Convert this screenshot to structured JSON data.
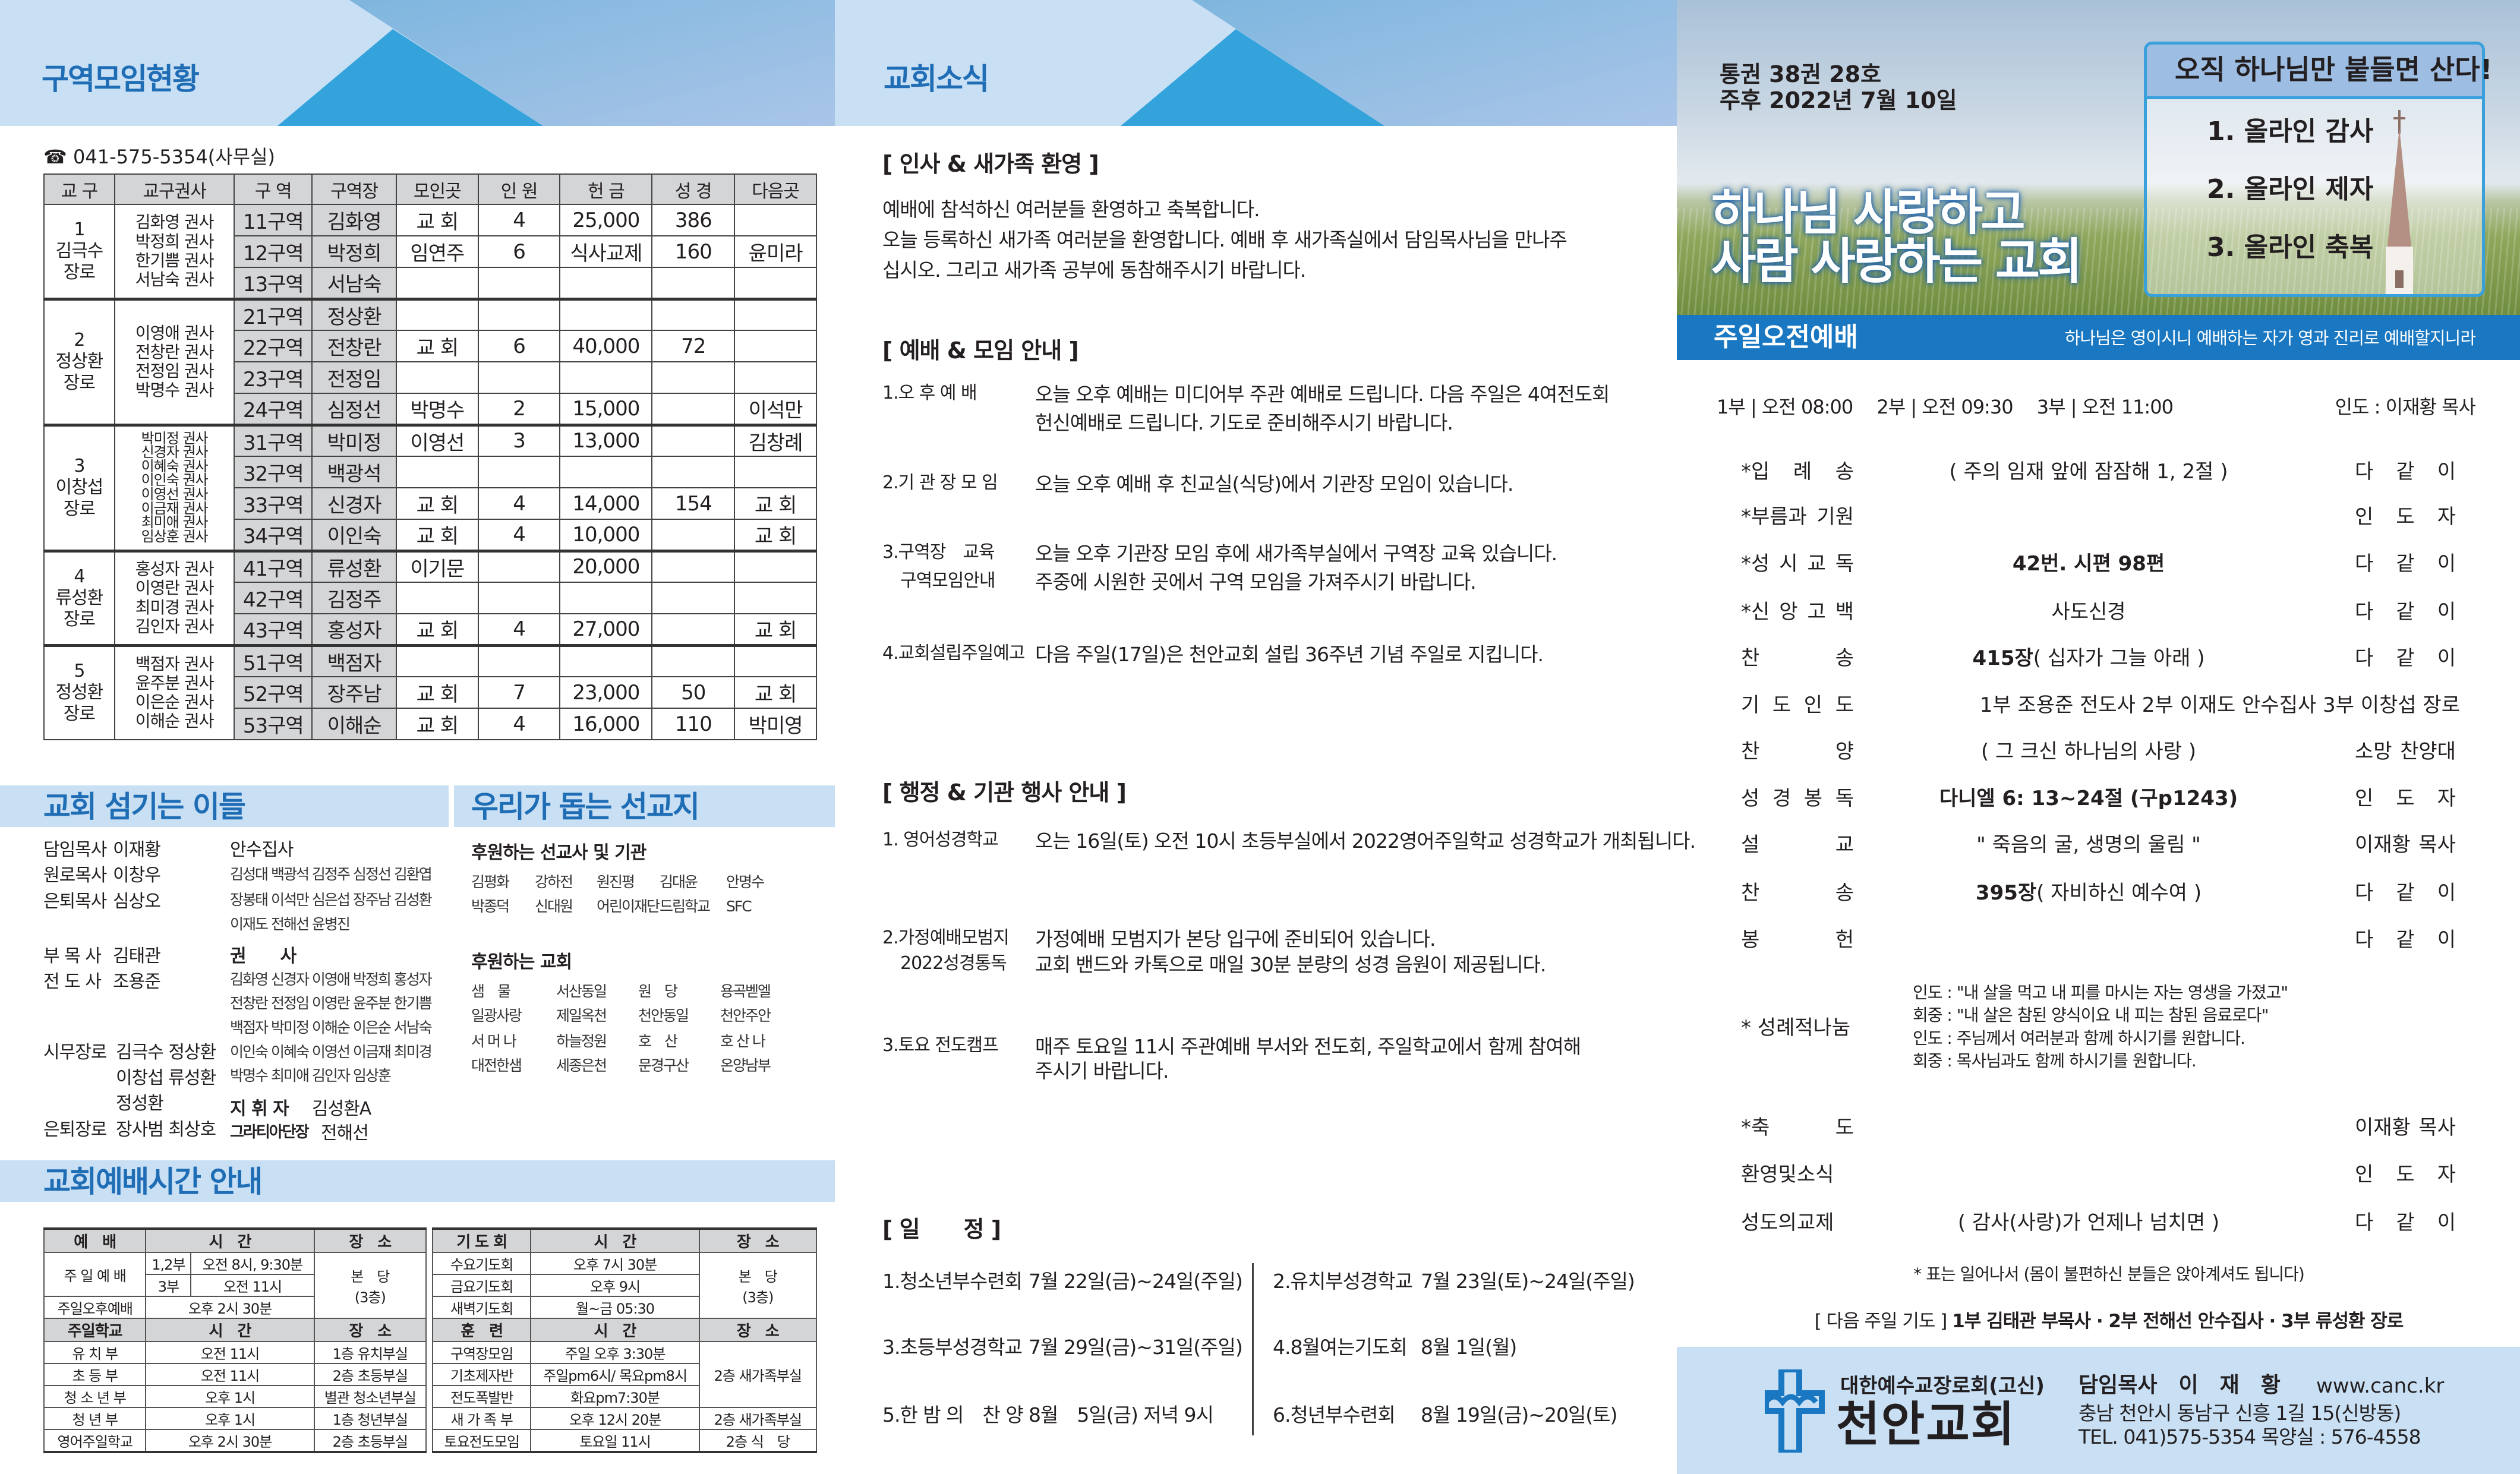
{
  "left": {
    "title": "구역모임현황",
    "phone_icon": "telephone-icon",
    "phone": "☎ 041-575-5354(사무실)",
    "headers": [
      "교 구",
      "교구권사",
      "구 역",
      "구역장",
      "모인곳",
      "인 원",
      "헌 금",
      "성 경",
      "다음곳"
    ],
    "groups": [
      {
        "num": "1",
        "leader": "김극수",
        "title": "장로",
        "kwonsa": [
          "김화영 권사",
          "박정희 권사",
          "한기쁨 권사",
          "서남숙 권사"
        ],
        "districts": [
          [
            "11구역",
            "김화영",
            "교 회",
            "4",
            "25,000",
            "386",
            ""
          ],
          [
            "12구역",
            "박정희",
            "임연주",
            "6",
            "식사교제",
            "160",
            "윤미라"
          ],
          [
            "13구역",
            "서남숙",
            "",
            "",
            "",
            "",
            ""
          ]
        ]
      },
      {
        "num": "2",
        "leader": "정상환",
        "title": "장로",
        "kwonsa": [
          "이영애 권사",
          "전창란 권사",
          "전정임 권사",
          "박명수 권사"
        ],
        "districts": [
          [
            "21구역",
            "정상환",
            "",
            "",
            "",
            "",
            ""
          ],
          [
            "22구역",
            "전창란",
            "교 회",
            "6",
            "40,000",
            "72",
            ""
          ],
          [
            "23구역",
            "전정임",
            "",
            "",
            "",
            "",
            ""
          ],
          [
            "24구역",
            "심정선",
            "박명수",
            "2",
            "15,000",
            "",
            "이석만"
          ]
        ]
      },
      {
        "num": "3",
        "leader": "이창섭",
        "title": "장로",
        "kwonsa": [
          "박미정 권사",
          "신경자 권사",
          "이혜숙 권사",
          "이인숙 권사",
          "이영선 권사",
          "이금재 권사",
          "최미애 권사",
          "임상훈 권사"
        ],
        "districts": [
          [
            "31구역",
            "박미정",
            "이영선",
            "3",
            "13,000",
            "",
            "김창례"
          ],
          [
            "32구역",
            "백광석",
            "",
            "",
            "",
            "",
            ""
          ],
          [
            "33구역",
            "신경자",
            "교 회",
            "4",
            "14,000",
            "154",
            "교 회"
          ],
          [
            "34구역",
            "이인숙",
            "교 회",
            "4",
            "10,000",
            "",
            "교 회"
          ]
        ]
      },
      {
        "num": "4",
        "leader": "류성환",
        "title": "장로",
        "kwonsa": [
          "홍성자 권사",
          "이영란 권사",
          "최미경 권사",
          "김인자 권사"
        ],
        "districts": [
          [
            "41구역",
            "류성환",
            "이기문",
            "",
            "20,000",
            "",
            ""
          ],
          [
            "42구역",
            "김정주",
            "",
            "",
            "",
            "",
            ""
          ],
          [
            "43구역",
            "홍성자",
            "교 회",
            "4",
            "27,000",
            "",
            "교 회"
          ]
        ]
      },
      {
        "num": "5",
        "leader": "정성환",
        "title": "장로",
        "kwonsa": [
          "백점자 권사",
          "윤주분 권사",
          "이은순 권사",
          "이해순 권사"
        ],
        "districts": [
          [
            "51구역",
            "백점자",
            "",
            "",
            "",
            "",
            ""
          ],
          [
            "52구역",
            "장주남",
            "교 회",
            "7",
            "23,000",
            "50",
            "교 회"
          ],
          [
            "53구역",
            "이해순",
            "교 회",
            "4",
            "16,000",
            "110",
            "박미영"
          ]
        ]
      }
    ]
  },
  "servants": {
    "title": "교회 섬기는 이들",
    "pastors": [
      {
        "role": "담임목사",
        "name": "이재황"
      },
      {
        "role": "원로목사",
        "name": "이창우"
      },
      {
        "role": "은퇴목사",
        "name": "심상오"
      }
    ],
    "assoc": [
      {
        "role": "부 목 사",
        "name": "김태관"
      },
      {
        "role": "전 도 사",
        "name": "조용준"
      }
    ],
    "elders_label": "시무장로",
    "elders_lines": [
      "김극수 정상환",
      "이창섭 류성환",
      "정성환"
    ],
    "retired_label": "은퇴장로",
    "retired_names": "장사범 최상호",
    "deacons_label": "안수집사",
    "deacons_lines": [
      "김성대 백광석 김정주 심정선 김환엽",
      "장봉태 이석만 심은섭 장주남 김성환",
      "이재도 전해선 윤병진"
    ],
    "kwonsa_label": "권　　사",
    "kwonsa_lines": [
      "김화영 신경자 이영애 박정희 홍성자",
      "전창란 전정임 이영란 윤주분 한기쁨",
      "백점자 박미정 이해순 이은순 서남숙",
      "이인숙 이혜숙 이영선 이금재 최미경",
      "박명수 최미애 김인자 임상훈"
    ],
    "conductor_label": "지 휘 자",
    "conductor": "김성환A",
    "gratia_label": "그라티아단장",
    "gratia": "전해선"
  },
  "missions": {
    "title": "우리가 돕는 선교지",
    "sub1": "후원하는 선교사 및 기관",
    "rows1": [
      [
        "김평화",
        "강하전",
        "원진평",
        "김대윤",
        "안명수"
      ],
      [
        "박종덕",
        "신대원",
        "어린이재단",
        "드림학교",
        "SFC"
      ]
    ],
    "sub2": "후원하는 교회",
    "churches": [
      [
        "샘　물",
        "서산동일",
        "원　당",
        "용곡벧엘"
      ],
      [
        "일광사랑",
        "제일옥천",
        "천안동일",
        "천안주안"
      ],
      [
        "서 머 나",
        "하늘정원",
        "호　산",
        "호 산 나"
      ],
      [
        "대전한샘",
        "세종은천",
        "문경구산",
        "온양남부"
      ]
    ]
  },
  "worship_times": {
    "title": "교회예배시간 안내",
    "left": {
      "h1": [
        "예　배",
        "시　간",
        "장　소"
      ],
      "sunday": "주 일 예 배",
      "r1": [
        "1,2부",
        "오전 8시, 9:30분"
      ],
      "r2": [
        "3부",
        "오전 11시"
      ],
      "place1": "본　당",
      "place1b": "(3층)",
      "r3": [
        "주일오후예배",
        "오후 2시 30분"
      ],
      "h2": [
        "주일학교",
        "시　간",
        "장　소"
      ],
      "school": [
        [
          "유 치 부",
          "오전 11시",
          "1층 유치부실"
        ],
        [
          "초 등 부",
          "오전 11시",
          "2층 초등부실"
        ],
        [
          "청 소 년 부",
          "오후 1시",
          "별관 청소년부실"
        ],
        [
          "청 년 부",
          "오후 1시",
          "1층 청년부실"
        ],
        [
          "영어주일학교",
          "오후 2시 30분",
          "2층 초등부실"
        ]
      ]
    },
    "right": {
      "h1": [
        "기 도 회",
        "시　간",
        "장　소"
      ],
      "prayer": [
        [
          "수요기도회",
          "오후 7시 30분"
        ],
        [
          "금요기도회",
          "오후 9시"
        ],
        [
          "새벽기도회",
          "월~금 05:30"
        ]
      ],
      "place1": "본　당",
      "place1b": "(3층)",
      "h2": [
        "훈　련",
        "시　간",
        "장　소"
      ],
      "training": [
        [
          "구역장모임",
          "주일 오후 3:30분"
        ],
        [
          "기초제자반",
          "주일pm6시/ 목요pm8시"
        ],
        [
          "전도폭발반",
          "화요pm7:30분"
        ]
      ],
      "training_place": "2층 새가족부실",
      "r_new": [
        "새 가 족 부",
        "오후 12시 20분",
        "2층 새가족부실"
      ],
      "r_sat": [
        "토요전도모임",
        "토요일 11시",
        "2층 식　당"
      ]
    }
  },
  "news": {
    "title": "교회소식",
    "s1": "[ 인사 & 새가족 환영 ]",
    "s1_lines": [
      "예배에 참석하신 여러분들 환영하고 축복합니다.",
      "오늘 등록하신 새가족 여러분을 환영합니다. 예배 후 새가족실에서 담임목사님을 만나주",
      "십시오. 그리고 새가족 공부에 동참해주시기 바랍니다."
    ],
    "s2": "[ 예배 & 모임 안내 ]",
    "s2_items": [
      {
        "label": "1.오 후 예 배",
        "lines": [
          "오늘 오후 예배는 미디어부 주관 예배로 드립니다. 다음 주일은 4여전도회",
          "헌신예배로 드립니다. 기도로 준비해주시기 바랍니다."
        ]
      },
      {
        "label": "2.기 관 장 모 임",
        "lines": [
          "오늘 오후 예배 후 친교실(식당)에서 기관장 모임이 있습니다."
        ]
      },
      {
        "label": "3.구역장　교육",
        "label2": "구역모임안내",
        "lines": [
          "오늘 오후 기관장 모임 후에 새가족부실에서 구역장 교육 있습니다.",
          "주중에 시원한 곳에서 구역 모임을 가져주시기 바랍니다."
        ]
      },
      {
        "label": "4.교회설립주일예고",
        "lines": [
          "다음 주일(17일)은 천안교회 설립 36주년 기념 주일로 지킵니다."
        ]
      }
    ],
    "s3": "[ 행정 & 기관 행사 안내 ]",
    "s3_items": [
      {
        "label": "1. 영어성경학교",
        "lines": [
          "오는 16일(토) 오전 10시 초등부실에서 2022영어주일학교 성경학교가 개최됩니다."
        ]
      },
      {
        "label": "2.가정예배모범지",
        "label2": "2022성경통독",
        "lines": [
          "가정예배 모범지가 본당 입구에 준비되어 있습니다.",
          "교회 밴드와 카톡으로 매일 30분 분량의 성경 음원이 제공됩니다."
        ]
      },
      {
        "label": "3.토요 전도캠프",
        "lines": [
          "매주 토요일 11시 주관예배 부서와 전도회, 주일학교에서 함께 참여해",
          "주시기 바랍니다."
        ]
      }
    ],
    "s4": "[ 일　　정 ]",
    "schedule": [
      {
        "label": "1.청소년부수련회",
        "date": "7월 22일(금)~24일(주일)"
      },
      {
        "label": "2.유치부성경학교",
        "date": "7월 23일(토)~24일(주일)"
      },
      {
        "label": "3.초등부성경학교",
        "date": "7월 29일(금)~31일(주일)"
      },
      {
        "label": "4.8월여는기도회",
        "date": "8월 1일(월)"
      },
      {
        "label": "5.한 밤 의　찬 양",
        "date": "8월　5일(금) 저녁 9시"
      },
      {
        "label": "6.청년부수련회",
        "date": "8월 19일(금)~20일(토)"
      }
    ]
  },
  "cover": {
    "volume": "통권 38권  28호",
    "date": "주후 2022년  7월   10일",
    "motto_title": "오직 하나님만 붙들면 산다!",
    "motto_items": [
      "1. 올라인 감사",
      "2. 올라인 제자",
      "3. 올라인 축복"
    ],
    "slogan1": "하나님 사랑하고",
    "slogan2": "사람 사랑하는 교회",
    "bar_title": "주일오전예배",
    "bar_verse": "하나님은 영이시니 예배하는 자가 영과 진리로 예배할지니라",
    "times": "1부 | 오전 08:00　 2부 | 오전 09:30　 3부 | 오전 11:00",
    "leader": "인도 : 이재황 목사"
  },
  "order": [
    {
      "label": "*입 례 송",
      "content": "( 주의 임재 앞에 잠잠해 1, 2절 )",
      "leader": "다 같 이"
    },
    {
      "label": "*부름과 기원",
      "content": "",
      "leader": "인 도 자"
    },
    {
      "label": "*성 시 교 독",
      "bold": "42번. 시편 98편",
      "content": "",
      "leader": "다 같 이"
    },
    {
      "label": "*신 앙 고 백",
      "content": "사도신경",
      "leader": "다 같 이"
    },
    {
      "label": "찬　　송",
      "bold": "415장",
      "content": "( 십자가 그늘 아래 )",
      "leader": "다 같 이"
    },
    {
      "label": "기 도 인 도",
      "content": "1부 조용준 전도사  2부 이재도 안수집사  3부 이창섭 장로",
      "leader": ""
    },
    {
      "label": "찬　　양",
      "content": "( 그 크신 하나님의 사랑 )",
      "leader": "소망 찬양대"
    },
    {
      "label": "성 경 봉 독",
      "bold": "다니엘 6: 13~24절 (구p1243)",
      "content": "",
      "leader": "인 도 자"
    },
    {
      "label": "설　　교",
      "content": "\" 죽음의 굴, 생명의 울림 \"",
      "leader": "이재황 목사"
    },
    {
      "label": "찬　　송",
      "bold": "395장",
      "content": "( 자비하신 예수여 )",
      "leader": "다 같 이"
    },
    {
      "label": "봉　　헌",
      "content": "",
      "leader": "다 같 이"
    }
  ],
  "sacrament": {
    "label": "* 성례적나눔",
    "lines": [
      "인도 : \"내 살을 먹고 내 피를 마시는 자는 영생을 가졌고\"",
      "회중 : \"내 살은 참된 양식이요 내 피는 참된 음료로다\"",
      "인도 : 주님께서 여러분과 함께 하시기를 원합니다.",
      "회중 : 목사님과도 함께 하시기를 원합니다."
    ]
  },
  "order2": [
    {
      "label": "*축　　도",
      "content": "",
      "leader": "이재황 목사"
    },
    {
      "label": "환영및소식",
      "content": "",
      "leader": "인 도 자"
    },
    {
      "label": "성도의교제",
      "content": "( 감사(사랑)가 언제나 넘치면 )",
      "leader": "다 같 이"
    }
  ],
  "note": "* 표는 일어나서 (몸이 불편하신 분들은 앉아계셔도 됩니다)",
  "next_prayer_label": "[ 다음 주일 기도 ]",
  "next_prayer": "1부 김태관 부목사 · 2부 전해선 안수집사 · 3부 류성환 장로",
  "footer": {
    "denomination": "대한예수교장로회(고신)",
    "church": "천안교회",
    "pastor": "담임목사　이　재　황",
    "web": "www.canc.kr",
    "address": "충남 천안시 동남구 신흥 1길 15(신방동)",
    "tel": "TEL. 041)575-5354  목양실 : 576-4558"
  },
  "colors": {
    "heading": "#1f6db5",
    "band": "#c8dff4",
    "triangle": "#34a3dc",
    "bar": "#1a78c2"
  }
}
